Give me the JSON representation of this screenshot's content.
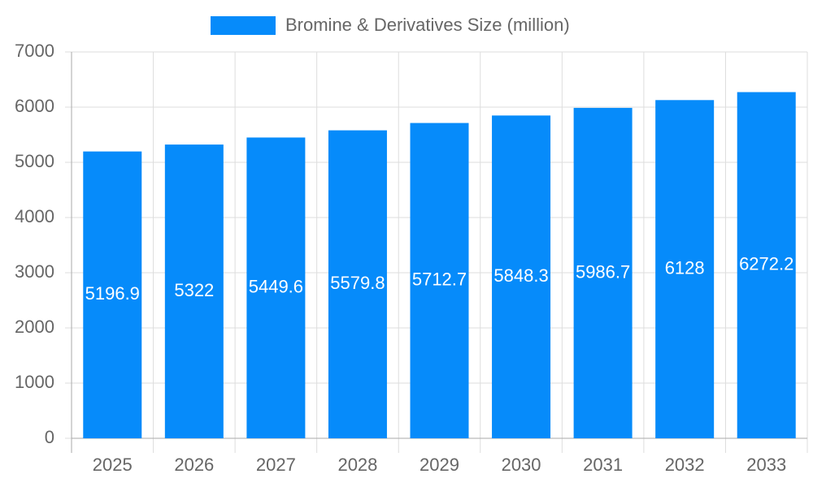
{
  "chart_data": {
    "type": "bar",
    "categories": [
      "2025",
      "2026",
      "2027",
      "2028",
      "2029",
      "2030",
      "2031",
      "2032",
      "2033"
    ],
    "series": [
      {
        "name": "Bromine & Derivatives Size (million)",
        "color": "#068bfa",
        "values": [
          5196.9,
          5322,
          5449.6,
          5579.8,
          5712.7,
          5848.3,
          5986.7,
          6128,
          6272.2
        ]
      }
    ],
    "ylim": [
      0,
      7000
    ],
    "yticks": [
      0,
      1000,
      2000,
      3000,
      4000,
      5000,
      6000,
      7000
    ],
    "grid": true,
    "legend": "top"
  }
}
